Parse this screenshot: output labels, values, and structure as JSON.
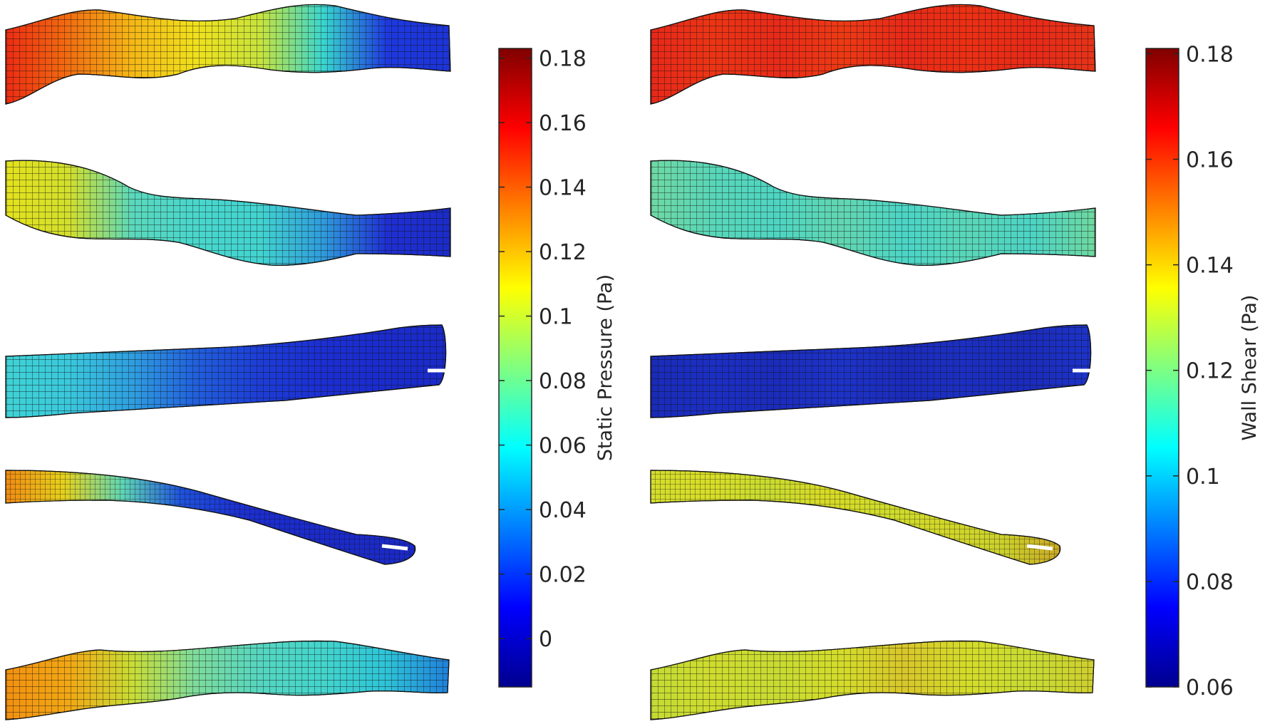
{
  "panels": [
    {
      "id": "left",
      "colorbar_label": "Static Pressure (Pa)",
      "tick_labels": [
        "0.18",
        "0.16",
        "0.14",
        "0.12",
        "0.1",
        "0.08",
        "0.06",
        "0.04",
        "0.02",
        "0"
      ],
      "range": [
        -0.015,
        0.183
      ],
      "tick_values": [
        0.18,
        0.16,
        0.14,
        0.12,
        0.1,
        0.08,
        0.06,
        0.04,
        0.02,
        0
      ],
      "vessels": [
        {
          "name": "vessel-1",
          "colors": [
            "#ee2b12",
            "#f26e10",
            "#f5b816",
            "#f0e11c",
            "#c8e43c",
            "#38d6d0",
            "#1d39df",
            "#1d33d6"
          ]
        },
        {
          "name": "vessel-2",
          "colors": [
            "#e4e21d",
            "#d2df2c",
            "#5ad8bc",
            "#49d6cc",
            "#42d4d0",
            "#2e9bdc",
            "#1f2fd2",
            "#1c2cc8"
          ]
        },
        {
          "name": "vessel-3",
          "colors": [
            "#3fd3d6",
            "#3ac8dc",
            "#2f9fe0",
            "#2160dd",
            "#1d3ed6",
            "#1c2fd2",
            "#1b2ccd",
            "#1b2bc8"
          ]
        },
        {
          "name": "vessel-4",
          "colors": [
            "#f08a12",
            "#e6d21c",
            "#5ed6b6",
            "#1e52dd",
            "#1c30d2",
            "#1b2bcb",
            "#1b2bc8",
            "#1b2ac6"
          ]
        },
        {
          "name": "vessel-5",
          "colors": [
            "#f39010",
            "#f2a814",
            "#c8dd34",
            "#7ddb9c",
            "#55d6c0",
            "#43d5cc",
            "#2ec4d8",
            "#2080dc"
          ]
        }
      ]
    },
    {
      "id": "right",
      "colorbar_label": "Wall Shear (Pa)",
      "tick_labels": [
        "0.18",
        "0.16",
        "0.14",
        "0.12",
        "0.1",
        "0.08",
        "0.06"
      ],
      "range": [
        0.06,
        0.181
      ],
      "tick_values": [
        0.18,
        0.16,
        0.14,
        0.12,
        0.1,
        0.08,
        0.06
      ],
      "vessels": [
        {
          "name": "vessel-1",
          "colors": [
            "#e8281a",
            "#ec3515",
            "#e82a18",
            "#ee3a14",
            "#e82a18",
            "#ec3014",
            "#e82a18",
            "#e73418"
          ]
        },
        {
          "name": "vessel-2",
          "colors": [
            "#6fd8a4",
            "#58d6b8",
            "#4ed5c2",
            "#62d6b0",
            "#4bd5c6",
            "#5ad6b8",
            "#4cd4c4",
            "#6fd8a0"
          ]
        },
        {
          "name": "vessel-3",
          "colors": [
            "#1a2bb8",
            "#1c2fc4",
            "#1b2cbc",
            "#1d33c8",
            "#1b2cbc",
            "#1c2fc2",
            "#1b2cbc",
            "#1d33c8"
          ]
        },
        {
          "name": "vessel-4",
          "colors": [
            "#d4dd2c",
            "#d8de28",
            "#c9db30",
            "#d8da26",
            "#cfdc2c",
            "#d2d72a",
            "#ccd22c",
            "#c9a824"
          ]
        },
        {
          "name": "vessel-5",
          "colors": [
            "#c4db34",
            "#cfdc2e",
            "#c8db32",
            "#d4dc2a",
            "#d8c62a",
            "#d4dc2a",
            "#c8db32",
            "#cfcf2e"
          ]
        }
      ]
    }
  ],
  "colormap": [
    "#00008f",
    "#0000ff",
    "#0080ff",
    "#00ffff",
    "#80ff80",
    "#ffff00",
    "#ff8000",
    "#ff0000",
    "#800000"
  ]
}
